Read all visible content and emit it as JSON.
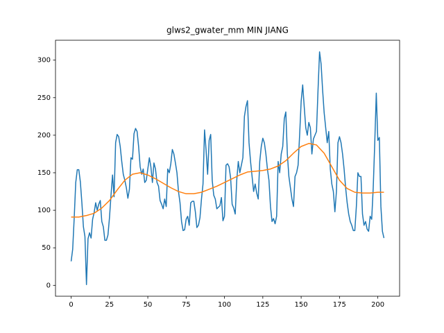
{
  "chart_data": {
    "type": "line",
    "title": "glws2_gwater_mm MIN JIANG",
    "xlim": [
      -10.2,
      214.2
    ],
    "ylim": [
      -14.5,
      326.5
    ],
    "xticks": [
      0,
      25,
      50,
      75,
      100,
      125,
      150,
      175,
      200
    ],
    "yticks": [
      0,
      50,
      100,
      150,
      200,
      250,
      300
    ],
    "series": [
      {
        "color": "#1f77b4",
        "x": [
          0,
          1,
          2,
          3,
          4,
          5,
          6,
          7,
          8,
          9,
          10,
          11,
          12,
          13,
          14,
          15,
          16,
          17,
          18,
          19,
          20,
          21,
          22,
          23,
          24,
          25,
          26,
          27,
          28,
          29,
          30,
          31,
          32,
          33,
          34,
          35,
          36,
          37,
          38,
          39,
          40,
          41,
          42,
          43,
          44,
          45,
          46,
          47,
          48,
          49,
          50,
          51,
          52,
          53,
          54,
          55,
          56,
          57,
          58,
          59,
          60,
          61,
          62,
          63,
          64,
          65,
          66,
          67,
          68,
          69,
          70,
          71,
          72,
          73,
          74,
          75,
          76,
          77,
          78,
          79,
          80,
          81,
          82,
          83,
          84,
          85,
          86,
          87,
          88,
          89,
          90,
          91,
          92,
          93,
          94,
          95,
          96,
          97,
          98,
          99,
          100,
          101,
          102,
          103,
          104,
          105,
          106,
          107,
          108,
          109,
          110,
          111,
          112,
          113,
          114,
          115,
          116,
          117,
          118,
          119,
          120,
          121,
          122,
          123,
          124,
          125,
          126,
          127,
          128,
          129,
          130,
          131,
          132,
          133,
          134,
          135,
          136,
          137,
          138,
          139,
          140,
          141,
          142,
          143,
          144,
          145,
          146,
          147,
          148,
          149,
          150,
          151,
          152,
          153,
          154,
          155,
          156,
          157,
          158,
          159,
          160,
          161,
          162,
          163,
          164,
          165,
          166,
          167,
          168,
          169,
          170,
          171,
          172,
          173,
          174,
          175,
          176,
          177,
          178,
          179,
          180,
          181,
          182,
          183,
          184,
          185,
          186,
          187,
          188,
          189,
          190,
          191,
          192,
          193,
          194,
          195,
          196,
          197,
          198,
          199,
          200,
          201,
          202,
          203,
          204
        ],
        "values": [
          32,
          48,
          90,
          137,
          154,
          154,
          138,
          110,
          78,
          65,
          1,
          62,
          70,
          63,
          88,
          97,
          110,
          100,
          108,
          113,
          85,
          78,
          60,
          60,
          67,
          90,
          120,
          147,
          118,
          190,
          201,
          198,
          185,
          165,
          148,
          140,
          130,
          116,
          128,
          170,
          168,
          202,
          209,
          205,
          185,
          158,
          148,
          155,
          137,
          140,
          155,
          170,
          158,
          137,
          163,
          155,
          137,
          132,
          113,
          108,
          102,
          115,
          105,
          155,
          150,
          162,
          181,
          175,
          163,
          150,
          125,
          110,
          85,
          73,
          74,
          88,
          92,
          80,
          110,
          112,
          112,
          98,
          77,
          80,
          90,
          115,
          135,
          207,
          180,
          148,
          193,
          201,
          140,
          120,
          115,
          102,
          104,
          106,
          117,
          86,
          92,
          160,
          162,
          158,
          143,
          108,
          103,
          95,
          140,
          165,
          150,
          160,
          170,
          225,
          238,
          246,
          190,
          165,
          145,
          125,
          135,
          123,
          115,
          165,
          185,
          196,
          190,
          175,
          155,
          140,
          105,
          85,
          89,
          82,
          92,
          165,
          150,
          175,
          185,
          222,
          231,
          175,
          145,
          130,
          115,
          105,
          145,
          150,
          160,
          200,
          245,
          267,
          238,
          210,
          200,
          217,
          210,
          175,
          195,
          200,
          205,
          260,
          311,
          295,
          260,
          230,
          210,
          190,
          205,
          155,
          135,
          125,
          98,
          125,
          190,
          198,
          190,
          175,
          155,
          130,
          110,
          95,
          85,
          80,
          73,
          73,
          105,
          150,
          145,
          145,
          95,
          80,
          85,
          75,
          72,
          92,
          88,
          130,
          190,
          256,
          193,
          197,
          105,
          72,
          63
        ]
      },
      {
        "color": "#ff7f0e",
        "x": [
          0,
          5,
          10,
          15,
          20,
          25,
          30,
          35,
          40,
          45,
          50,
          55,
          60,
          65,
          70,
          75,
          80,
          85,
          90,
          95,
          100,
          105,
          110,
          115,
          120,
          125,
          130,
          135,
          140,
          145,
          150,
          155,
          160,
          165,
          170,
          175,
          180,
          185,
          190,
          195,
          200,
          204
        ],
        "values": [
          91,
          91,
          93,
          96,
          103,
          113,
          127,
          140,
          148,
          150,
          147,
          142,
          136,
          130,
          125,
          122,
          122,
          124,
          128,
          132,
          137,
          142,
          147,
          151,
          152,
          153,
          155,
          159,
          166,
          176,
          185,
          189,
          187,
          176,
          158,
          140,
          129,
          124,
          123,
          123,
          124,
          124
        ]
      }
    ]
  }
}
